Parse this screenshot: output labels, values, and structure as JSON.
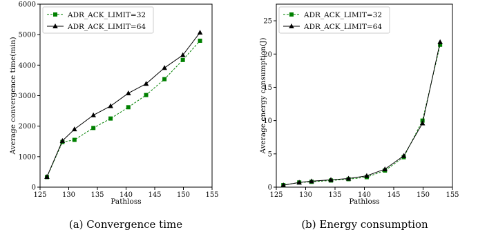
{
  "chart_data": [
    {
      "type": "line",
      "caption": "(a) Convergence time",
      "xlabel": "Pathloss",
      "ylabel": "Average convergence time(min)",
      "xlim": [
        125,
        155
      ],
      "ylim": [
        0,
        6000
      ],
      "xticks": [
        125,
        130,
        135,
        140,
        145,
        150,
        155
      ],
      "yticks": [
        0,
        1000,
        2000,
        3000,
        4000,
        5000,
        6000
      ],
      "xtick_labels": [
        "125",
        "130",
        "135",
        "140",
        "145",
        "150",
        "155"
      ],
      "ytick_labels": [
        "0",
        "1000",
        "2000",
        "3000",
        "4000",
        "5000",
        "6000"
      ],
      "grid": false,
      "legend_position": "top-left",
      "x": [
        126.2,
        128.9,
        131.0,
        134.3,
        137.3,
        140.4,
        143.5,
        146.7,
        149.9,
        152.9
      ],
      "series": [
        {
          "name": "ADR_ACK_LIMIT=32",
          "color": "#008000",
          "linestyle": "dashed",
          "marker": "square",
          "values": [
            330,
            1480,
            1550,
            1940,
            2250,
            2620,
            3020,
            3540,
            4170,
            4800
          ]
        },
        {
          "name": "ADR_ACK_LIMIT=64",
          "color": "#000000",
          "linestyle": "solid",
          "marker": "triangle",
          "values": [
            340,
            1520,
            1900,
            2360,
            2660,
            3080,
            3390,
            3910,
            4330,
            5070
          ]
        }
      ]
    },
    {
      "type": "line",
      "caption": "(b) Energy consumption",
      "xlabel": "Pathloss",
      "ylabel": "Average energy consumption(J)",
      "xlim": [
        125,
        155
      ],
      "ylim": [
        0,
        27.5
      ],
      "xticks": [
        125,
        130,
        135,
        140,
        145,
        150,
        155
      ],
      "yticks": [
        0,
        5,
        10,
        15,
        20,
        25
      ],
      "xtick_labels": [
        "125",
        "130",
        "135",
        "140",
        "145",
        "150",
        "155"
      ],
      "ytick_labels": [
        "0",
        "5",
        "10",
        "15",
        "20",
        "25"
      ],
      "grid": false,
      "legend_position": "top-left",
      "x": [
        126.2,
        128.9,
        131.0,
        134.3,
        137.3,
        140.4,
        143.5,
        146.7,
        149.9,
        152.9
      ],
      "series": [
        {
          "name": "ADR_ACK_LIMIT=32",
          "color": "#008000",
          "linestyle": "dashed",
          "marker": "square",
          "values": [
            0.3,
            0.7,
            0.8,
            1.0,
            1.2,
            1.5,
            2.5,
            4.5,
            10.0,
            21.4
          ]
        },
        {
          "name": "ADR_ACK_LIMIT=64",
          "color": "#000000",
          "linestyle": "solid",
          "marker": "triangle",
          "values": [
            0.3,
            0.7,
            0.9,
            1.1,
            1.3,
            1.7,
            2.7,
            4.7,
            9.6,
            21.8
          ]
        }
      ]
    }
  ]
}
